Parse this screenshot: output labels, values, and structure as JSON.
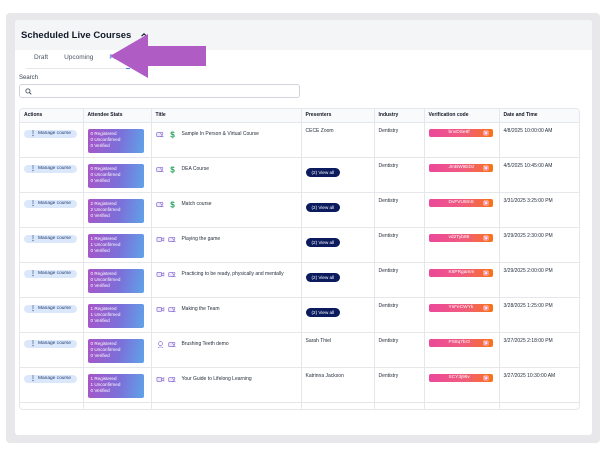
{
  "panel": {
    "title": "Scheduled Live Courses"
  },
  "tabs": [
    {
      "label": "Draft",
      "active": false
    },
    {
      "label": "Upcoming",
      "active": false
    },
    {
      "label": "Past",
      "active": true
    }
  ],
  "search": {
    "label": "Search",
    "placeholder": ""
  },
  "table": {
    "headers": [
      "Actions",
      "Attendee Stats",
      "Title",
      "Presenters",
      "Industry",
      "Verification code",
      "Date and Time"
    ],
    "rows": [
      {
        "action": "Manage course",
        "stats": [
          "0 Registered",
          "0 Unconfirmed",
          "0 Verified"
        ],
        "icons": [
          "users-icon",
          "dollar-icon"
        ],
        "title": "Sample In Person & Virtual Course",
        "presenter": "CECE Zoom",
        "view_all": "",
        "industry": "Dentistry",
        "code": "bnvDSe8f",
        "datetime": "4/8/2025 10:00:00 AM"
      },
      {
        "action": "Manage course",
        "stats": [
          "0 Registered",
          "0 Unconfirmed",
          "0 Verified"
        ],
        "icons": [
          "users-icon",
          "dollar-icon"
        ],
        "title": "DEA Course",
        "presenter": "",
        "view_all": "(2) View all",
        "industry": "Dentistry",
        "code": "JmBW9EDz",
        "datetime": "4/5/2025 10:45:00 AM"
      },
      {
        "action": "Manage course",
        "stats": [
          "2 Registered",
          "2 Unconfirmed",
          "0 Verified"
        ],
        "icons": [
          "users-icon",
          "dollar-icon"
        ],
        "title": "Match course",
        "presenter": "",
        "view_all": "(2) View all",
        "industry": "Dentistry",
        "code": "DvFVU8mS",
        "datetime": "3/31/2025 3:25:00 PM"
      },
      {
        "action": "Manage course",
        "stats": [
          "1 Registered",
          "1 Unconfirmed",
          "0 Verified"
        ],
        "icons": [
          "video-icon",
          "users-icon"
        ],
        "title": "Playing the game",
        "presenter": "",
        "view_all": "(2) View all",
        "industry": "Dentistry",
        "code": "vd2Tyb86",
        "datetime": "3/29/2025 2:30:00 PM"
      },
      {
        "action": "Manage course",
        "stats": [
          "0 Registered",
          "0 Unconfirmed",
          "0 Verified"
        ],
        "icons": [
          "video-icon",
          "users-icon"
        ],
        "title": "Practicing to be ready, physically and mentally",
        "presenter": "",
        "view_all": "(2) View all",
        "industry": "Dentistry",
        "code": "K6PRgamm",
        "datetime": "3/29/2025 2:00:00 PM"
      },
      {
        "action": "Manage course",
        "stats": [
          "1 Registered",
          "1 Unconfirmed",
          "0 Verified"
        ],
        "icons": [
          "video-icon",
          "users-icon"
        ],
        "title": "Making the Team",
        "presenter": "",
        "view_all": "(2) View all",
        "industry": "Dentistry",
        "code": "YsFeCWYk",
        "datetime": "3/28/2025 1:25:00 PM"
      },
      {
        "action": "Manage course",
        "stats": [
          "0 Registered",
          "0 Unconfirmed",
          "0 Verified"
        ],
        "icons": [
          "pin-icon",
          "users-icon"
        ],
        "title": "Brushing Teeth demo",
        "presenter": "Sarah Thiel",
        "view_all": "",
        "industry": "Dentistry",
        "code": "PS8q7br3",
        "datetime": "3/27/2025 2:18:00 PM"
      },
      {
        "action": "Manage course",
        "stats": [
          "1 Registered",
          "1 Unconfirmed",
          "0 Verified"
        ],
        "icons": [
          "video-icon",
          "users-icon"
        ],
        "title": "Your Guide to Lifelong Learning",
        "presenter": "Katrinna Jackson",
        "view_all": "",
        "industry": "Dentistry",
        "code": "SCY3j96v",
        "datetime": "3/27/2025 10:30:00 AM"
      }
    ]
  },
  "colors": {
    "accent": "#3b82f6",
    "arrow": "#b05cc5",
    "view_all_bg": "#0b1b5e"
  }
}
